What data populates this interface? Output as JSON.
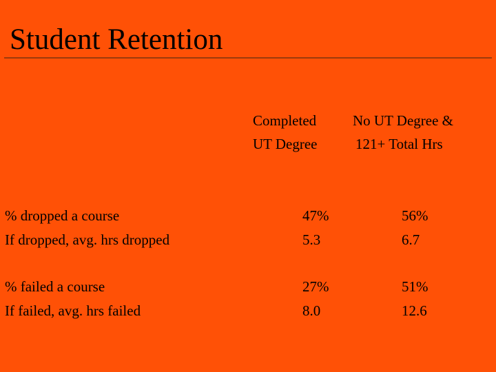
{
  "slide": {
    "title": "Student Retention",
    "accent_color": "#FF5106",
    "rule_color": "#9B3A0C"
  },
  "table": {
    "columns": [
      {
        "line1": "Completed",
        "line2": "UT Degree"
      },
      {
        "line1": "No UT Degree &",
        "line2": "121+ Total Hrs"
      }
    ],
    "rows": [
      {
        "label": "%  dropped a course",
        "values": [
          "47%",
          "56%"
        ]
      },
      {
        "label": "If dropped, avg. hrs dropped",
        "values": [
          "5.3",
          "6.7"
        ]
      },
      {
        "label": "% failed a course",
        "values": [
          "27%",
          "51%"
        ]
      },
      {
        "label": "If failed, avg. hrs failed",
        "values": [
          "8.0",
          "12.6"
        ]
      }
    ]
  }
}
